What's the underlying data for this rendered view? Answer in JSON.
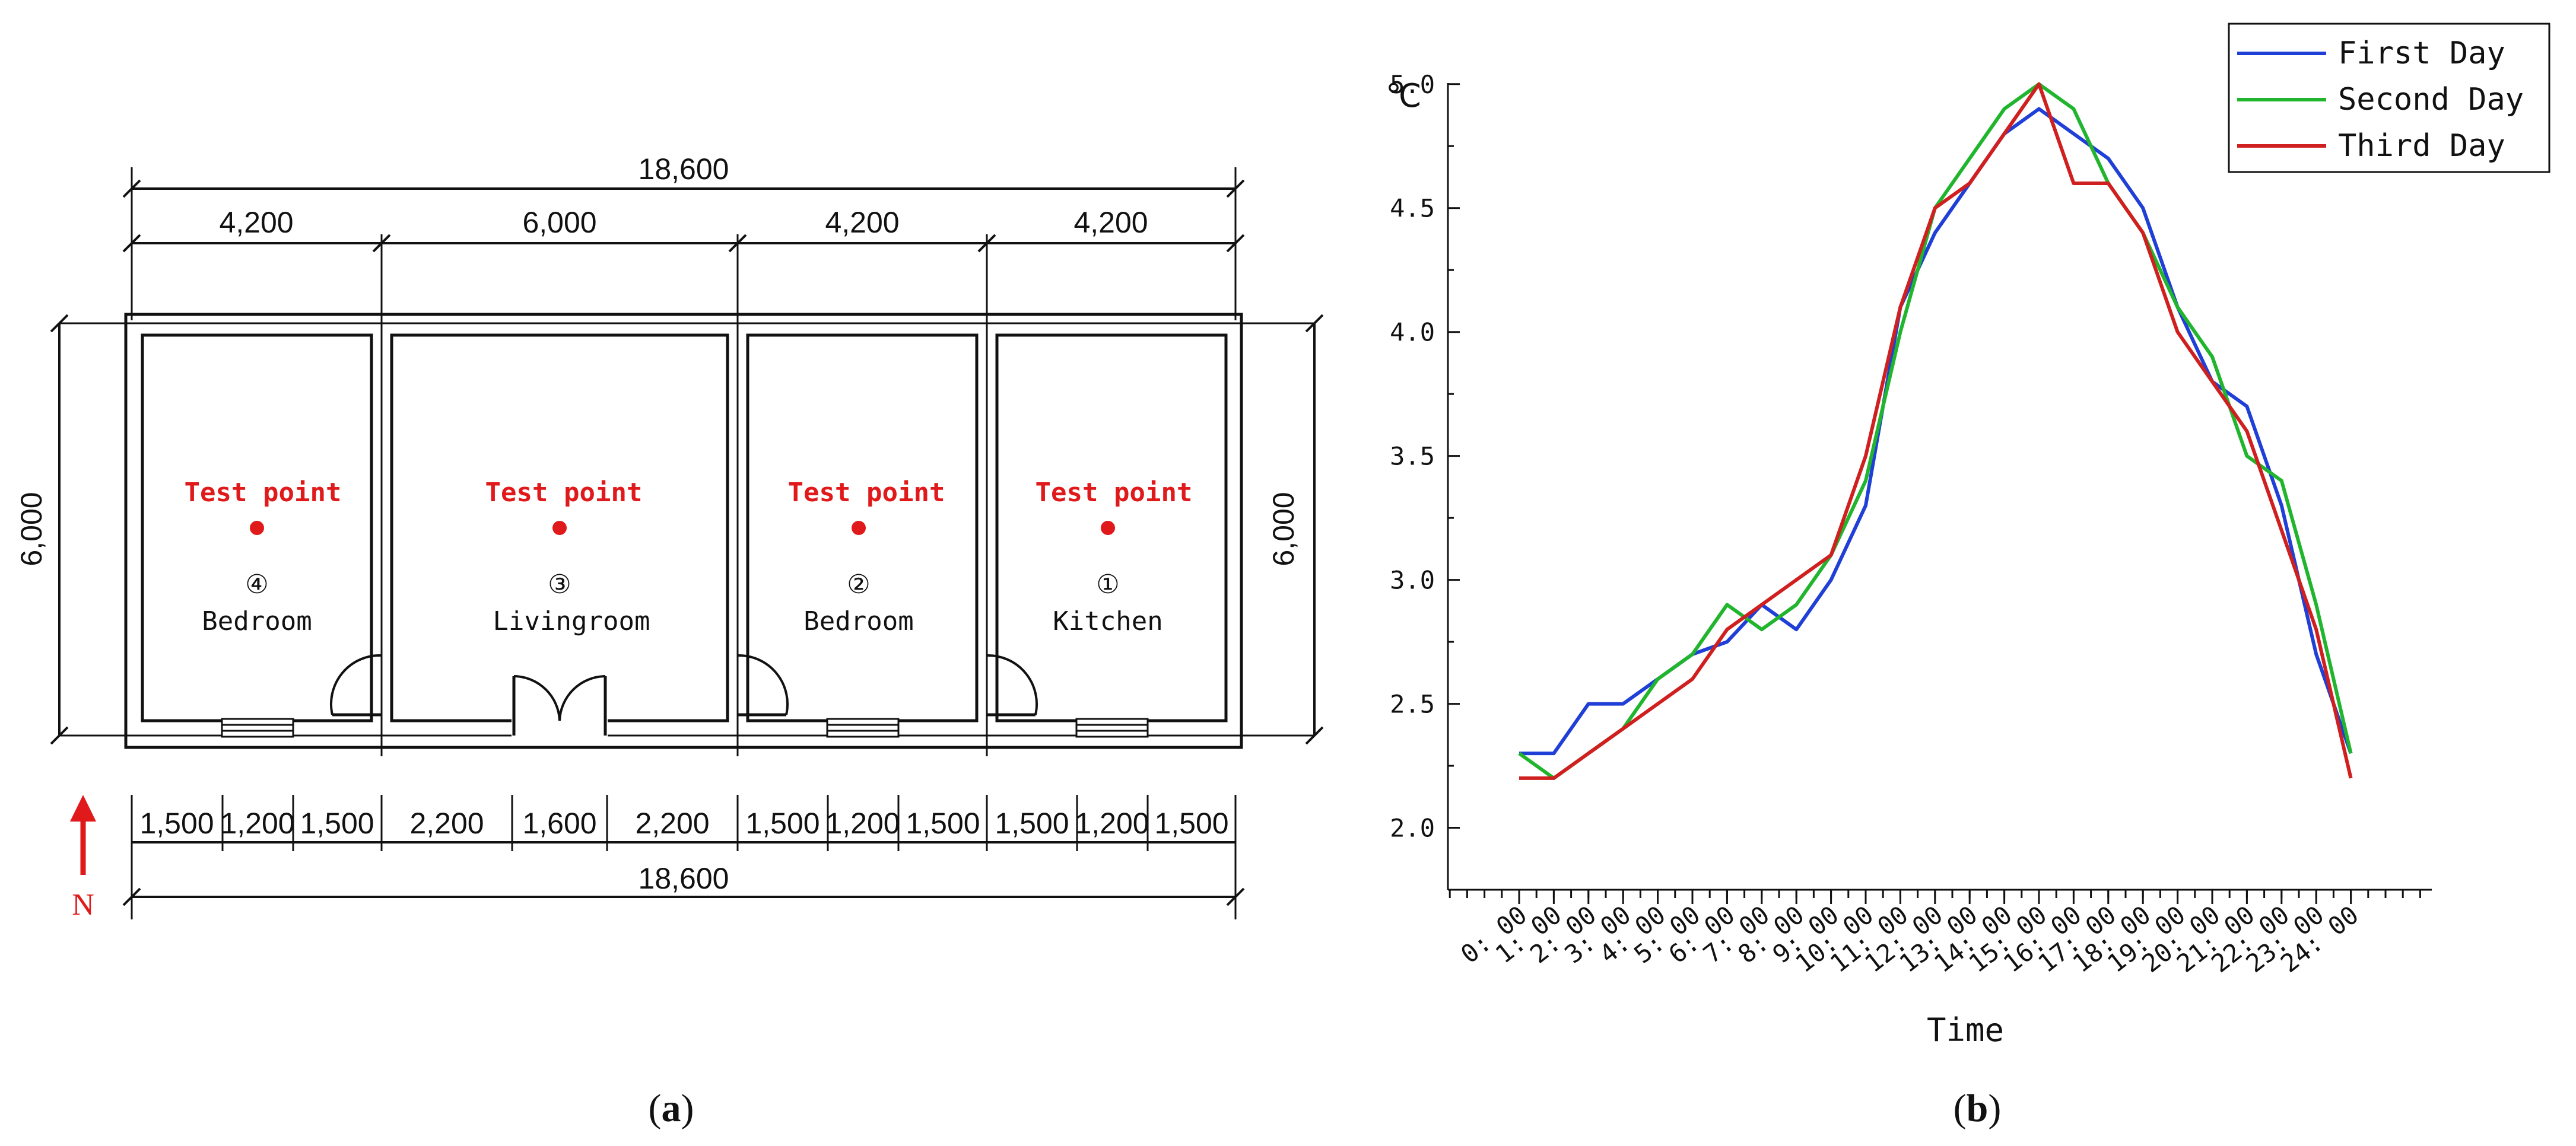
{
  "plan": {
    "top_total": "18,600",
    "top_segments": [
      "4,200",
      "6,000",
      "4,200",
      "4,200"
    ],
    "left_height": "6,000",
    "right_height": "6,000",
    "bottom_segments": [
      "1,500",
      "1,200",
      "1,500",
      "2,200",
      "1,600",
      "2,200",
      "1,500",
      "1,200",
      "1,500",
      "1,500",
      "1,200",
      "1,500"
    ],
    "bottom_total": "18,600",
    "north_label": "N",
    "test_point_label": "Test point",
    "rooms": [
      {
        "number": "④",
        "name": "Bedroom"
      },
      {
        "number": "③",
        "name": "Livingroom"
      },
      {
        "number": "②",
        "name": "Bedroom"
      },
      {
        "number": "①",
        "name": "Kitchen"
      }
    ],
    "accent_color": "#e0191b"
  },
  "panels": {
    "a": "a",
    "b": "b"
  },
  "chart_data": {
    "type": "line",
    "xlabel": "Time",
    "ylabel": "℃",
    "ylim": [
      1.75,
      5.1
    ],
    "yticks": [
      "2.0",
      "2.5",
      "3.0",
      "3.5",
      "4.0",
      "4.5",
      "5.0"
    ],
    "yvalues": [
      2.0,
      2.5,
      3.0,
      3.5,
      4.0,
      4.5,
      5.0
    ],
    "x_labels": [
      "0: 00",
      "1: 00",
      "2: 00",
      "3: 00",
      "4: 00",
      "5: 00",
      "6: 00",
      "7: 00",
      "8: 00",
      "9: 00",
      "10: 00",
      "11: 00",
      "12: 00",
      "13: 00",
      "14: 00",
      "15: 00",
      "16: 00",
      "17: 00",
      "18: 00",
      "19: 00",
      "20: 00",
      "21: 00",
      "22: 00",
      "23: 00",
      "24: 00"
    ],
    "legend_position": "top-right",
    "grid": false,
    "series": [
      {
        "name": "First Day",
        "color": "#1f3fd6",
        "x": [
          0,
          1,
          2,
          3,
          4,
          5,
          6,
          7,
          8,
          9,
          10,
          11,
          12,
          13,
          14,
          15,
          16,
          17,
          18,
          19,
          20,
          21,
          22,
          23,
          24
        ],
        "values": [
          2.3,
          2.3,
          2.5,
          2.5,
          2.6,
          2.7,
          2.75,
          2.9,
          2.8,
          3.0,
          3.3,
          4.1,
          4.4,
          4.6,
          4.8,
          4.9,
          4.8,
          4.7,
          4.5,
          4.1,
          3.8,
          3.7,
          3.3,
          2.7,
          2.3
        ]
      },
      {
        "name": "Second Day",
        "color": "#20b52c",
        "x": [
          0,
          1,
          2,
          3,
          4,
          5,
          6,
          7,
          8,
          9,
          10,
          11,
          12,
          13,
          14,
          15,
          16,
          17,
          18,
          19,
          20,
          21,
          22,
          23,
          24
        ],
        "values": [
          2.3,
          2.2,
          2.3,
          2.4,
          2.6,
          2.7,
          2.9,
          2.8,
          2.9,
          3.1,
          3.4,
          4.0,
          4.5,
          4.7,
          4.9,
          5.0,
          4.9,
          4.6,
          4.4,
          4.1,
          3.9,
          3.5,
          3.4,
          2.9,
          2.3
        ]
      },
      {
        "name": "Third Day",
        "color": "#d01f1f",
        "x": [
          0,
          1,
          2,
          3,
          4,
          5,
          6,
          7,
          8,
          9,
          10,
          11,
          12,
          13,
          14,
          15,
          16,
          17,
          18,
          19,
          20,
          21,
          22,
          23,
          24
        ],
        "values": [
          2.2,
          2.2,
          2.3,
          2.4,
          2.5,
          2.6,
          2.8,
          2.9,
          3.0,
          3.1,
          3.5,
          4.1,
          4.5,
          4.6,
          4.8,
          5.0,
          4.6,
          4.6,
          4.4,
          4.0,
          3.8,
          3.6,
          3.2,
          2.8,
          2.2
        ]
      }
    ]
  }
}
